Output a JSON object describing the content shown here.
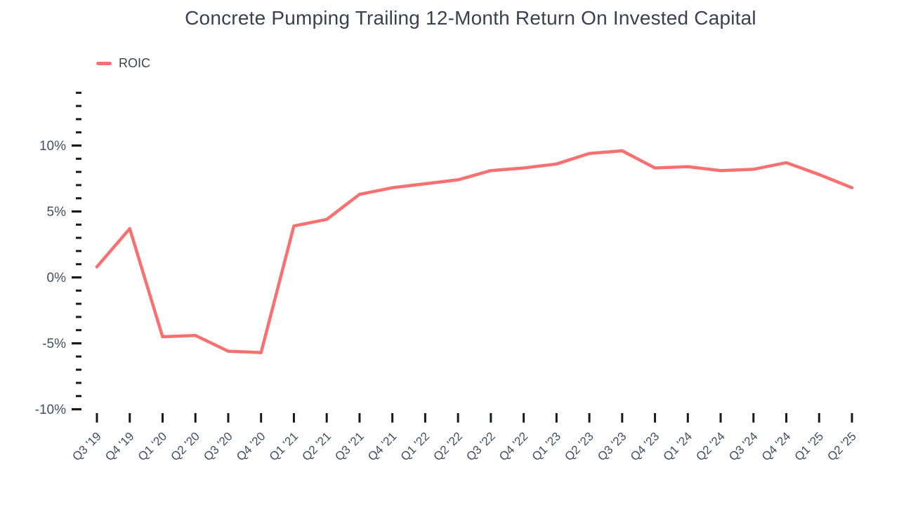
{
  "chart_data": {
    "type": "line",
    "title": "Concrete Pumping Trailing 12-Month Return On Invested Capital",
    "xlabel": "",
    "ylabel": "",
    "y_unit": "%",
    "categories": [
      "Q3 '19",
      "Q4 '19",
      "Q1 '20",
      "Q2 '20",
      "Q3 '20",
      "Q4 '20",
      "Q1 '21",
      "Q2 '21",
      "Q3 '21",
      "Q4 '21",
      "Q1 '22",
      "Q2 '22",
      "Q3 '22",
      "Q4 '22",
      "Q1 '23",
      "Q2 '23",
      "Q3 '23",
      "Q4 '23",
      "Q1 '24",
      "Q2 '24",
      "Q3 '24",
      "Q4 '24",
      "Q1 '25",
      "Q2 '25"
    ],
    "series": [
      {
        "name": "ROIC",
        "values": [
          0.8,
          3.7,
          -4.5,
          -4.4,
          -5.6,
          -5.7,
          3.9,
          4.4,
          6.3,
          6.8,
          7.1,
          7.4,
          8.1,
          8.3,
          8.6,
          9.4,
          9.6,
          8.3,
          8.4,
          8.1,
          8.2,
          8.7,
          7.8,
          6.8
        ]
      }
    ],
    "ylim": [
      -10,
      14
    ],
    "y_major_ticks": [
      -10,
      -5,
      0,
      5,
      10
    ],
    "y_major_tick_labels": [
      "-10%",
      "-5%",
      "0%",
      "5%",
      "10%"
    ],
    "y_minor_tick_step": 1,
    "grid": false,
    "axis_lines": false,
    "legend_position": "top-left",
    "x_label_rotation_deg": -45,
    "colors": {
      "line": "#F87070",
      "title_text": "#3A4250",
      "axis_text": "#424E63",
      "tick": "#16191E"
    }
  }
}
